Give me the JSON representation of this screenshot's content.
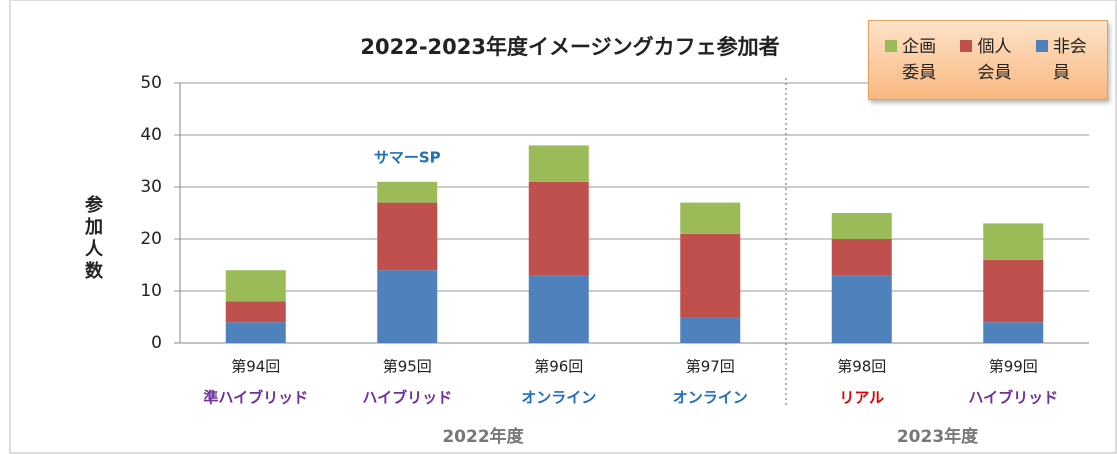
{
  "chart_data": {
    "type": "bar",
    "stacked": true,
    "title": "2022-2023年度イメージングカフェ参加者",
    "y_label": "参加人数",
    "categories": [
      "第94回",
      "第95回",
      "第96回",
      "第97回",
      "第98回",
      "第99回"
    ],
    "category_notes": [
      "準ハイブリッド",
      "ハイブリッド",
      "オンライン",
      "オンライン",
      "リアル",
      "ハイブリッド"
    ],
    "note_colors": [
      "#7030a0",
      "#7030a0",
      "#1f6fc0",
      "#1f6fc0",
      "#e00000",
      "#7030a0"
    ],
    "groups": [
      {
        "label": "2022年度",
        "count": 4
      },
      {
        "label": "2023年度",
        "count": 2
      }
    ],
    "annotation": {
      "text": "サマーSP",
      "category": 1,
      "color": "#1f6fc0"
    },
    "series": [
      {
        "name": "企画委員",
        "color": "#9bbb59",
        "values": [
          6,
          4,
          7,
          6,
          5,
          7
        ]
      },
      {
        "name": "個人会員",
        "color": "#c0504d",
        "values": [
          4,
          13,
          18,
          16,
          7,
          12
        ]
      },
      {
        "name": "非会員",
        "color": "#4f81bd",
        "values": [
          4,
          14,
          13,
          5,
          13,
          4
        ]
      }
    ],
    "ylim": [
      0,
      50
    ],
    "yticks": [
      0,
      10,
      20,
      30,
      40,
      50
    ],
    "grid": true
  }
}
